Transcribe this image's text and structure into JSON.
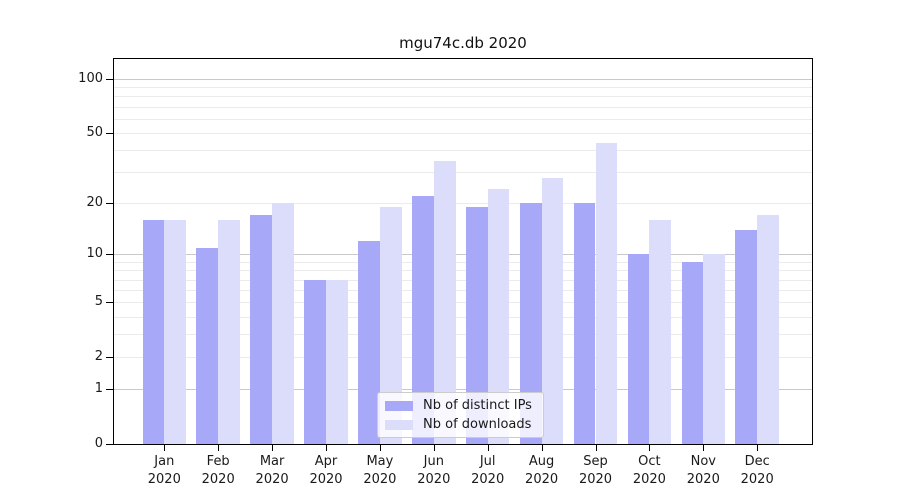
{
  "title": "mgu74c.db 2020",
  "chart_data": {
    "type": "bar",
    "title": "mgu74c.db 2020",
    "categories": [
      {
        "month": "Jan",
        "year": "2020"
      },
      {
        "month": "Feb",
        "year": "2020"
      },
      {
        "month": "Mar",
        "year": "2020"
      },
      {
        "month": "Apr",
        "year": "2020"
      },
      {
        "month": "May",
        "year": "2020"
      },
      {
        "month": "Jun",
        "year": "2020"
      },
      {
        "month": "Jul",
        "year": "2020"
      },
      {
        "month": "Aug",
        "year": "2020"
      },
      {
        "month": "Sep",
        "year": "2020"
      },
      {
        "month": "Oct",
        "year": "2020"
      },
      {
        "month": "Nov",
        "year": "2020"
      },
      {
        "month": "Dec",
        "year": "2020"
      }
    ],
    "series": [
      {
        "name": "Nb of distinct IPs",
        "color": "#a8a8f8",
        "values": [
          16,
          11,
          17,
          7,
          12,
          22,
          19,
          20,
          20,
          10,
          9,
          14
        ]
      },
      {
        "name": "Nb of downloads",
        "color": "#dcdcfb",
        "values": [
          16,
          16,
          20,
          7,
          19,
          35,
          24,
          28,
          44,
          16,
          10,
          17
        ]
      }
    ],
    "xlabel": "",
    "ylabel": "",
    "yscale": "log1p",
    "ylim": [
      0,
      129
    ],
    "yticks": [
      0,
      1,
      2,
      5,
      10,
      20,
      50,
      100
    ],
    "gridlines": {
      "major": [
        1,
        10,
        100
      ],
      "minor": [
        2,
        3,
        4,
        5,
        6,
        7,
        8,
        9,
        20,
        30,
        40,
        50,
        60,
        70,
        80,
        90
      ]
    },
    "grid": true,
    "legend_position": "lower center"
  }
}
